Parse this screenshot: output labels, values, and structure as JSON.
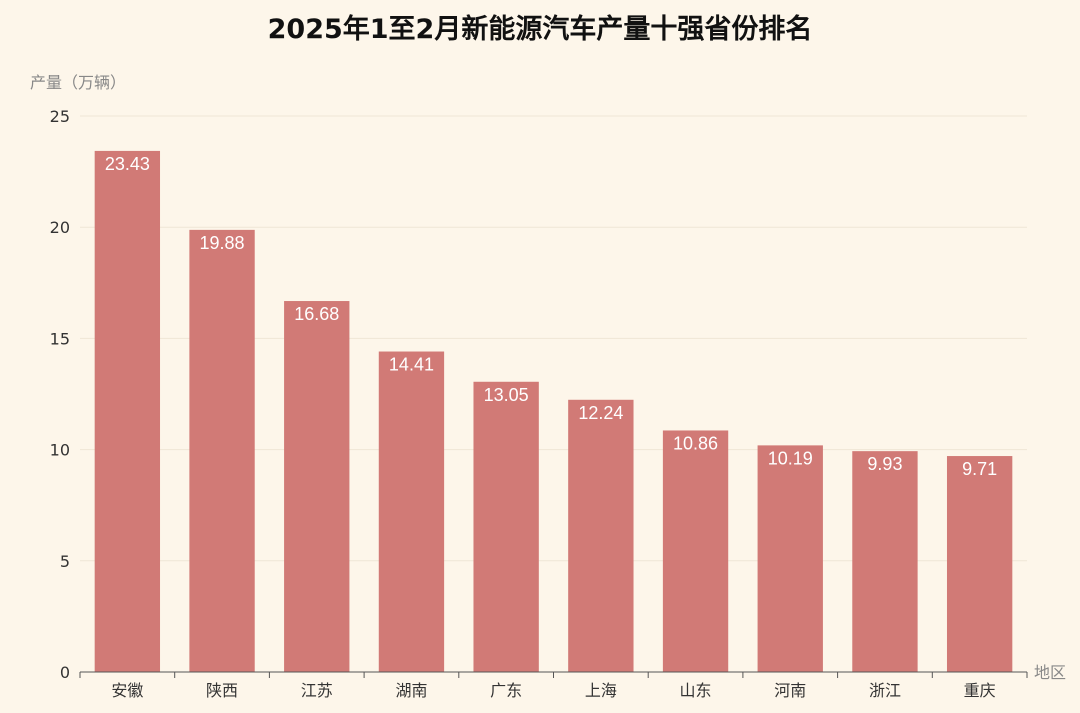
{
  "chart_data": {
    "type": "bar",
    "title": "2025年1至2月新能源汽车产量十强省份排名",
    "ylabel": "产量（万辆）",
    "xlabel": "地区",
    "categories": [
      "安徽",
      "陕西",
      "江苏",
      "湖南",
      "广东",
      "上海",
      "山东",
      "河南",
      "浙江",
      "重庆"
    ],
    "values": [
      23.43,
      19.88,
      16.68,
      14.41,
      13.05,
      12.24,
      10.86,
      10.19,
      9.93,
      9.71
    ],
    "value_labels": [
      "23.43",
      "19.88",
      "16.68",
      "14.41",
      "13.05",
      "12.24",
      "10.86",
      "10.19",
      "9.93",
      "9.71"
    ],
    "ylim": [
      0,
      25
    ],
    "yticks": [
      "0",
      "5",
      "10",
      "15",
      "20",
      "25"
    ],
    "highlight_category": "湖南",
    "grid": true,
    "colors": {
      "bar": "#d17a76",
      "highlight_label": "#d0161b",
      "background": "#fdf6ea"
    }
  }
}
